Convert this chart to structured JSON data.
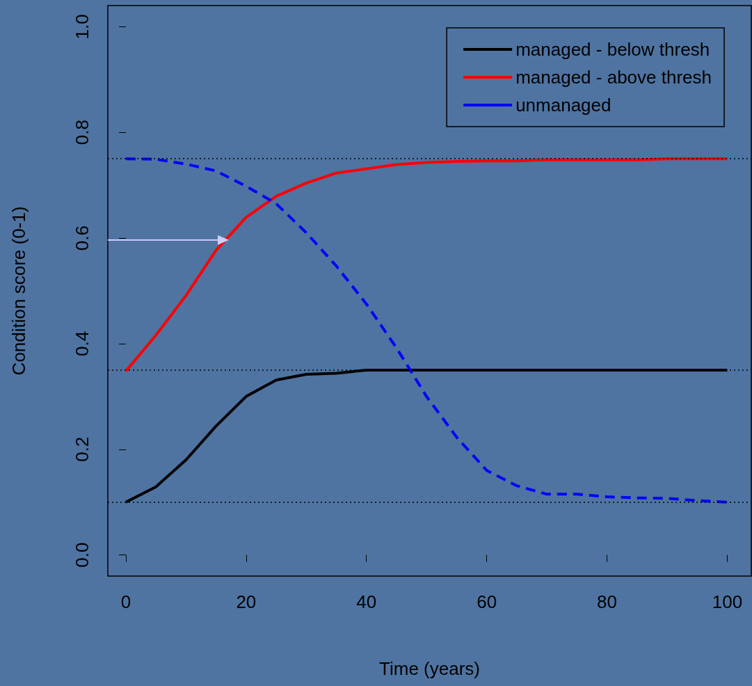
{
  "chart_data": {
    "type": "line",
    "xlabel": "Time (years)",
    "ylabel": "Condition score (0-1)",
    "x": [
      0,
      5,
      10,
      15,
      20,
      25,
      30,
      35,
      40,
      45,
      50,
      55,
      60,
      65,
      70,
      75,
      80,
      85,
      90,
      95,
      100
    ],
    "series": [
      {
        "name": "managed - below thresh",
        "color": "#000000",
        "line_style": "solid",
        "values": [
          0.1,
          0.129,
          0.18,
          0.244,
          0.3,
          0.331,
          0.342,
          0.344,
          0.35,
          0.35,
          0.35,
          0.35,
          0.35,
          0.35,
          0.35,
          0.35,
          0.35,
          0.35,
          0.35,
          0.35,
          0.35
        ]
      },
      {
        "name": "managed - above thresh",
        "color": "#ff0000",
        "line_style": "solid",
        "values": [
          0.348,
          0.416,
          0.491,
          0.577,
          0.639,
          0.679,
          0.704,
          0.723,
          0.731,
          0.739,
          0.743,
          0.745,
          0.746,
          0.746,
          0.748,
          0.748,
          0.748,
          0.748,
          0.75,
          0.75,
          0.75
        ]
      },
      {
        "name": "unmanaged",
        "color": "#0000ff",
        "line_style": "dashed",
        "values": [
          0.75,
          0.749,
          0.74,
          0.727,
          0.698,
          0.665,
          0.61,
          0.547,
          0.475,
          0.392,
          0.3,
          0.223,
          0.16,
          0.131,
          0.115,
          0.115,
          0.11,
          0.108,
          0.107,
          0.103,
          0.1
        ]
      }
    ],
    "xlim": [
      -3,
      104
    ],
    "xticks": [
      0,
      20,
      40,
      60,
      80,
      100
    ],
    "ylim": [
      -0.04,
      1.04
    ],
    "yticks": [
      {
        "value": 0,
        "label": "0.0"
      },
      {
        "value": 0.2,
        "label": "0.2"
      },
      {
        "value": 0.4,
        "label": "0.4"
      },
      {
        "value": 0.6,
        "label": "0.6"
      },
      {
        "value": 0.8,
        "label": "0.8"
      },
      {
        "value": 1,
        "label": "1.0"
      }
    ],
    "ref_lines": [
      {
        "axis": "y",
        "value": 0.75,
        "color": "#000000",
        "line_style": "dotted"
      },
      {
        "axis": "y",
        "value": 0.35,
        "color": "#000000",
        "line_style": "dotted"
      },
      {
        "axis": "y",
        "value": 0.1,
        "color": "#000000",
        "line_style": "dotted"
      }
    ],
    "grid": false,
    "legend": "top right",
    "marker": "none"
  }
}
